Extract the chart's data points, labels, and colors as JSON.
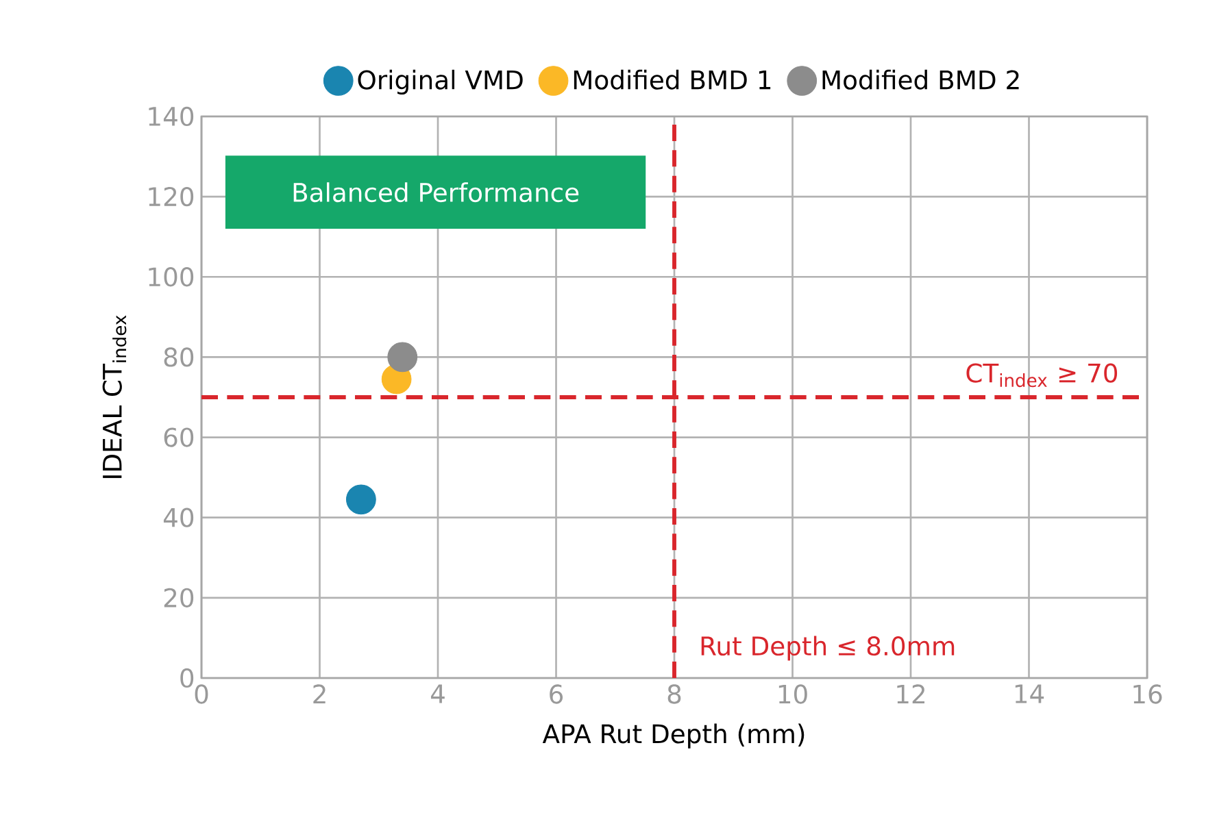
{
  "chart_data": {
    "type": "scatter",
    "xlabel": "APA Rut Depth (mm)",
    "ylabel": "IDEAL CT$_{index}$",
    "xlim": [
      0,
      16
    ],
    "xticks": [
      0,
      2,
      4,
      6,
      8,
      10,
      12,
      14,
      16
    ],
    "ylim": [
      0,
      140
    ],
    "yticks": [
      0,
      20,
      40,
      60,
      80,
      100,
      120,
      140
    ],
    "series": [
      {
        "name": "Original VMD",
        "color": "#1a85b0",
        "x": [
          2.7
        ],
        "values": [
          44.5
        ]
      },
      {
        "name": "Modified BMD 1",
        "color": "#fbb826",
        "x": [
          3.3
        ],
        "values": [
          74.5
        ]
      },
      {
        "name": "Modified BMD 2",
        "color": "#8c8c8c",
        "x": [
          3.4
        ],
        "values": [
          80
        ]
      }
    ],
    "ref_lines": [
      {
        "axis": "x",
        "value": 8,
        "label": "Rut Depth ≤ 8.0mm",
        "color": "#d9262c",
        "line_style": "dashed"
      },
      {
        "axis": "y",
        "value": 70,
        "label": "CT$_{index}$ ≥ 70",
        "color": "#d9262c",
        "line_style": "dashed"
      }
    ],
    "annotations": [
      "Balanced Performance"
    ],
    "grid": true,
    "legend": "top",
    "marker": "circle"
  }
}
